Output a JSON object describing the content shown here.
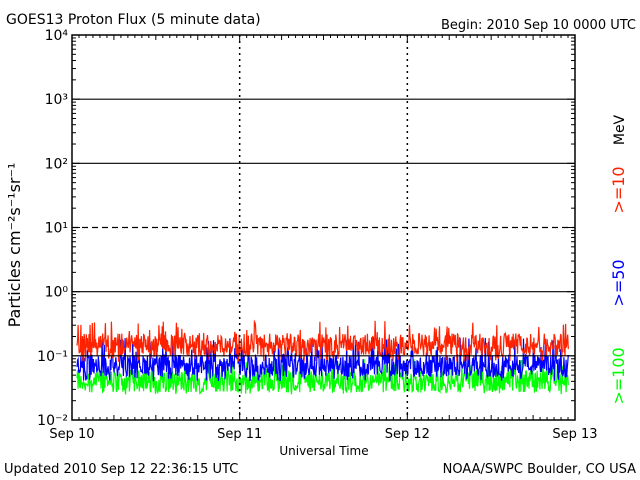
{
  "title": "GOES13 Proton Flux (5 minute data)",
  "begin_label": "Begin: 2010 Sep 10 0000 UTC",
  "updated_label": "Updated 2010 Sep 12 22:36:15 UTC",
  "credit": "NOAA/SWPC Boulder, CO USA",
  "colors": {
    "series_10": "#ff2200",
    "series_50": "#0000ff",
    "series_100": "#00ff00",
    "axes": "#000000"
  },
  "chart_data": {
    "type": "line",
    "title": "GOES13 Proton Flux (5 minute data)",
    "xlabel": "Universal Time",
    "ylabel": "Particles cm⁻²s⁻¹sr⁻¹",
    "y_scale": "log",
    "ylim": [
      0.01,
      10000
    ],
    "x_range_days": [
      0,
      3
    ],
    "x_ticks": [
      {
        "day": 0,
        "label": "Sep 10"
      },
      {
        "day": 1,
        "label": "Sep 11"
      },
      {
        "day": 2,
        "label": "Sep 12"
      },
      {
        "day": 3,
        "label": "Sep 13"
      }
    ],
    "y_ticks": [
      {
        "value": 0.01,
        "label": "10⁻²"
      },
      {
        "value": 0.1,
        "label": "10⁻¹"
      },
      {
        "value": 1,
        "label": "10⁰"
      },
      {
        "value": 10,
        "label": "10¹"
      },
      {
        "value": 100,
        "label": "10²"
      },
      {
        "value": 1000,
        "label": "10³"
      },
      {
        "value": 10000,
        "label": "10⁴"
      }
    ],
    "grid": {
      "solid": [
        0.1,
        1,
        100,
        1000
      ],
      "dashed": [
        10
      ],
      "day_dividers": "dashed"
    },
    "legend_position": "right",
    "legend_unit": "MeV",
    "series": [
      {
        "name": ">=10",
        "color": "#ff2200",
        "typical_flux": 0.15,
        "range": [
          0.08,
          0.35
        ]
      },
      {
        "name": ">=50",
        "color": "#0000ff",
        "typical_flux": 0.07,
        "range": [
          0.04,
          0.2
        ]
      },
      {
        "name": ">=100",
        "color": "#00ff00",
        "typical_flux": 0.04,
        "range": [
          0.025,
          0.09
        ]
      }
    ]
  }
}
